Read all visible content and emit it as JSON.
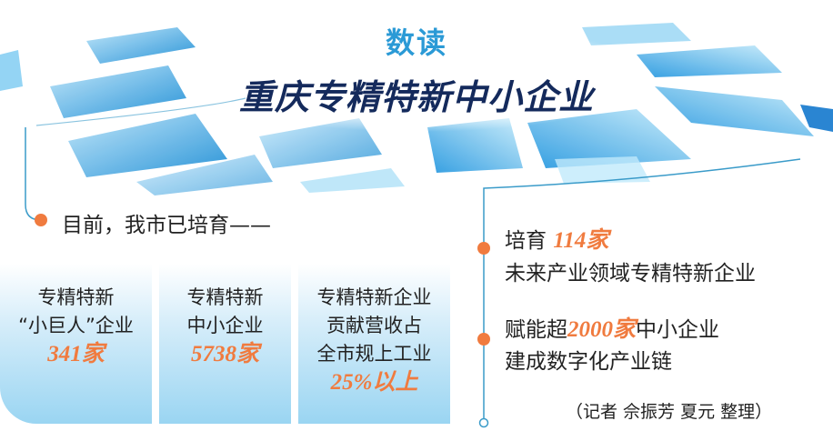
{
  "header": {
    "title": "数读",
    "subtitle": "重庆专精特新中小企业"
  },
  "left": {
    "intro": "目前，我市已培育——",
    "boxes": [
      {
        "line1": "专精特新",
        "line2": "“小巨人”企业",
        "value": "341家"
      },
      {
        "line1": "专精特新",
        "line2": "中小企业",
        "value": "5738家"
      },
      {
        "line1": "专精特新企业",
        "line2": "贡献营收占",
        "line3": "全市规上工业",
        "value": "25%以上"
      }
    ]
  },
  "right": {
    "item1": {
      "prefix": "培育",
      "value": "114家",
      "line2": "未来产业领域专精特新企业"
    },
    "item2": {
      "prefix": "赋能超",
      "value": "2000家",
      "suffix": "中小企业",
      "line2": "建成数字化产业链"
    },
    "credit": "（记者  佘振芳  夏元  整理）"
  },
  "colors": {
    "accent": "#f07b3f",
    "title": "#2b9ad6",
    "subtitle": "#142a5c",
    "line": "#3a9bc9"
  }
}
